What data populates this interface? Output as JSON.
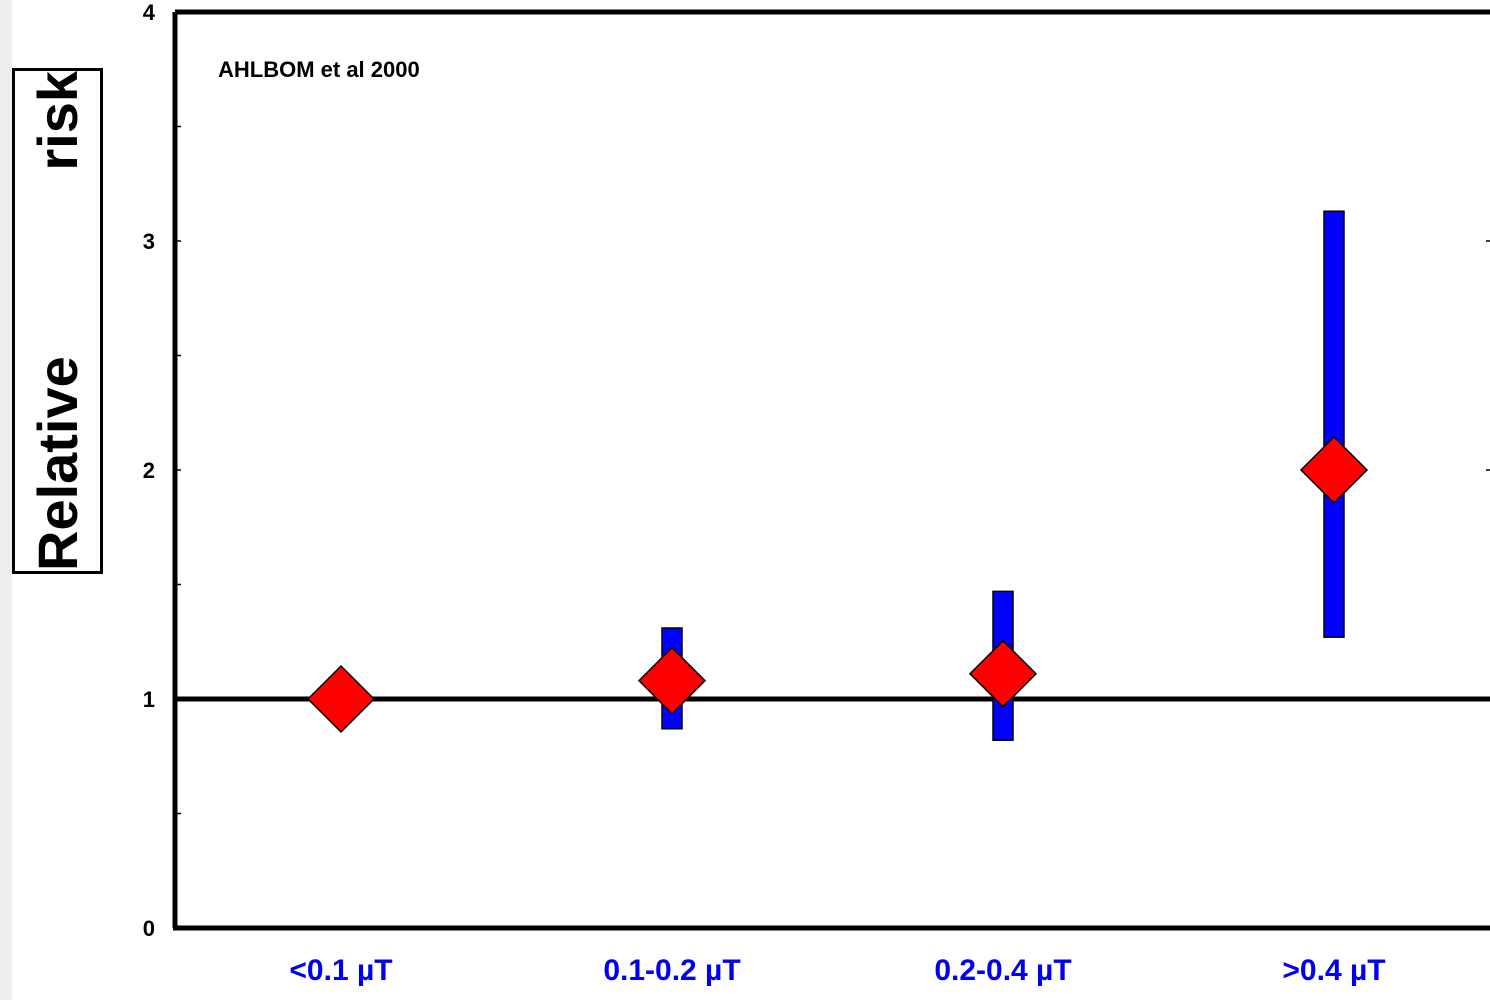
{
  "chart_data": {
    "type": "scatter",
    "title": "",
    "annotation": "AHLBOM et al 2000",
    "ylabel": "Relative risk",
    "xlabel": "",
    "ylim": [
      0,
      4
    ],
    "y_ticks": [
      "0",
      "1",
      "2",
      "3",
      "4"
    ],
    "categories": [
      "<0.1 µT",
      "0.1-0.2 µT",
      "0.2-0.4 µT",
      ">0.4 µT"
    ],
    "series": [
      {
        "values": [
          1.0,
          1.08,
          1.11,
          2.0
        ],
        "ci_low": [
          null,
          0.87,
          0.82,
          1.27
        ],
        "ci_high": [
          null,
          1.31,
          1.47,
          3.13
        ],
        "marker": "diamond",
        "marker_color": "#ff0000",
        "bar_color": "#0000ff"
      }
    ],
    "reference_line": 1,
    "grid": false,
    "colors": {
      "marker": "#ff0000",
      "error_bar": "#0000ff",
      "axis": "#000000",
      "category_text": "#0000ee"
    }
  }
}
